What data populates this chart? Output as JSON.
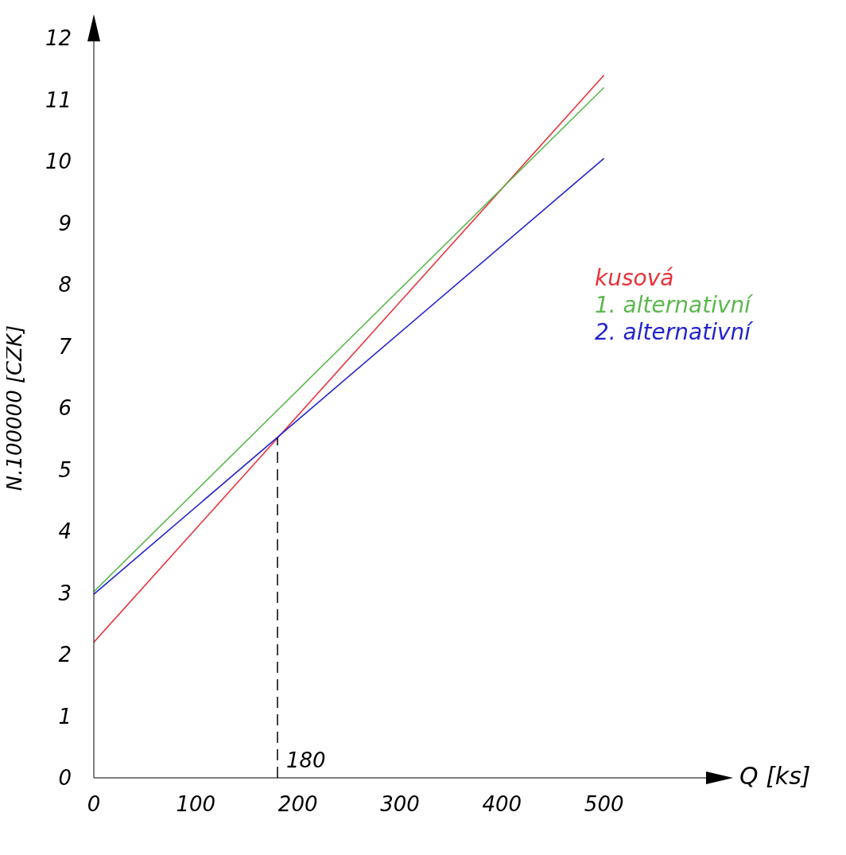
{
  "chart_data": {
    "type": "line",
    "xlabel": "Q [ks]",
    "ylabel": "N.100000 [CZK]",
    "x": [
      0,
      500
    ],
    "series": [
      {
        "name": "kusová",
        "color": "#e8313a",
        "values": [
          2.2,
          11.4
        ]
      },
      {
        "name": "1. alternativní",
        "color": "#5cb84e",
        "values": [
          3.02,
          11.2
        ]
      },
      {
        "name": "2. alternativní",
        "color": "#2323d0",
        "values": [
          2.98,
          10.05
        ]
      }
    ],
    "xlim": [
      0,
      600
    ],
    "xticks": [
      0,
      100,
      200,
      300,
      400,
      500
    ],
    "ylim": [
      0,
      12
    ],
    "yticks": [
      0,
      1,
      2,
      3,
      4,
      5,
      6,
      7,
      8,
      9,
      10,
      11,
      12
    ],
    "ref_lines": [
      {
        "axis": "x",
        "value": 180,
        "label": "180",
        "line_style": "dashed",
        "color": "#000000"
      }
    ],
    "grid": false,
    "legend": "right",
    "marker": "none",
    "line_style": "solid"
  }
}
